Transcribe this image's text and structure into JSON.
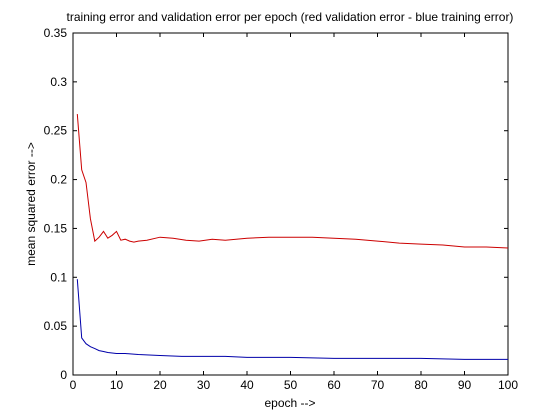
{
  "chart_data": {
    "type": "line",
    "title": "training error and validation error per epoch  (red validation error - blue training error)",
    "xlabel": "epoch -->",
    "ylabel": "mean squared error -->",
    "xlim": [
      0,
      100
    ],
    "ylim": [
      0,
      0.35
    ],
    "x_ticks": [
      0,
      10,
      20,
      30,
      40,
      50,
      60,
      70,
      80,
      90,
      100
    ],
    "y_ticks": [
      0,
      0.05,
      0.1,
      0.15,
      0.2,
      0.25,
      0.3,
      0.35
    ],
    "x_tick_labels": [
      "0",
      "10",
      "20",
      "30",
      "40",
      "50",
      "60",
      "70",
      "80",
      "90",
      "100"
    ],
    "y_tick_labels": [
      "0",
      "0.05",
      "0.1",
      "0.15",
      "0.2",
      "0.25",
      "0.3",
      "0.35"
    ],
    "grid": false,
    "series": [
      {
        "color": "#cc0000",
        "x": [
          1,
          2,
          3,
          4,
          5,
          6,
          7,
          8,
          9,
          10,
          11,
          12,
          13,
          14,
          15,
          17,
          20,
          23,
          26,
          29,
          32,
          35,
          40,
          45,
          50,
          55,
          60,
          65,
          70,
          75,
          80,
          85,
          90,
          95,
          100
        ],
        "y": [
          0.267,
          0.21,
          0.197,
          0.16,
          0.137,
          0.141,
          0.147,
          0.14,
          0.143,
          0.147,
          0.138,
          0.139,
          0.137,
          0.136,
          0.137,
          0.138,
          0.141,
          0.14,
          0.138,
          0.137,
          0.139,
          0.138,
          0.14,
          0.141,
          0.141,
          0.141,
          0.14,
          0.139,
          0.137,
          0.135,
          0.134,
          0.133,
          0.131,
          0.131,
          0.13
        ]
      },
      {
        "color": "#0000aa",
        "x": [
          1,
          2,
          3,
          4,
          5,
          6,
          7,
          8,
          10,
          12,
          15,
          20,
          25,
          30,
          35,
          40,
          50,
          60,
          70,
          80,
          90,
          100
        ],
        "y": [
          0.098,
          0.038,
          0.032,
          0.029,
          0.027,
          0.025,
          0.024,
          0.023,
          0.022,
          0.022,
          0.021,
          0.02,
          0.019,
          0.019,
          0.019,
          0.018,
          0.018,
          0.017,
          0.017,
          0.017,
          0.016,
          0.016
        ]
      }
    ]
  }
}
